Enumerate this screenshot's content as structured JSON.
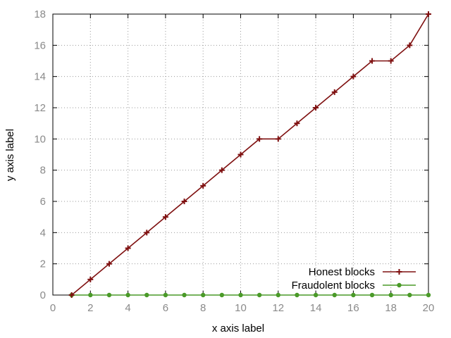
{
  "chart_data": {
    "type": "line",
    "title": "",
    "xlabel": "x axis label",
    "ylabel": "y axis label",
    "xlim": [
      0,
      20
    ],
    "ylim": [
      0,
      18
    ],
    "xticks": [
      0,
      2,
      4,
      6,
      8,
      10,
      12,
      14,
      16,
      18,
      20
    ],
    "yticks": [
      0,
      2,
      4,
      6,
      8,
      10,
      12,
      14,
      16,
      18
    ],
    "grid": true,
    "legend_position": "bottom-right",
    "x": [
      1,
      2,
      3,
      4,
      5,
      6,
      7,
      8,
      9,
      10,
      11,
      12,
      13,
      14,
      15,
      16,
      17,
      18,
      19,
      20
    ],
    "series": [
      {
        "name": "Honest blocks",
        "color": "#7f1010",
        "marker": "plus",
        "values": [
          0,
          1,
          2,
          3,
          4,
          5,
          6,
          7,
          8,
          9,
          10,
          10,
          11,
          12,
          13,
          14,
          15,
          15,
          16,
          18
        ]
      },
      {
        "name": "Fraudolent blocks",
        "color": "#4a9a28",
        "marker": "dot",
        "values": [
          0,
          0,
          0,
          0,
          0,
          0,
          0,
          0,
          0,
          0,
          0,
          0,
          0,
          0,
          0,
          0,
          0,
          0,
          0,
          0
        ]
      }
    ]
  }
}
